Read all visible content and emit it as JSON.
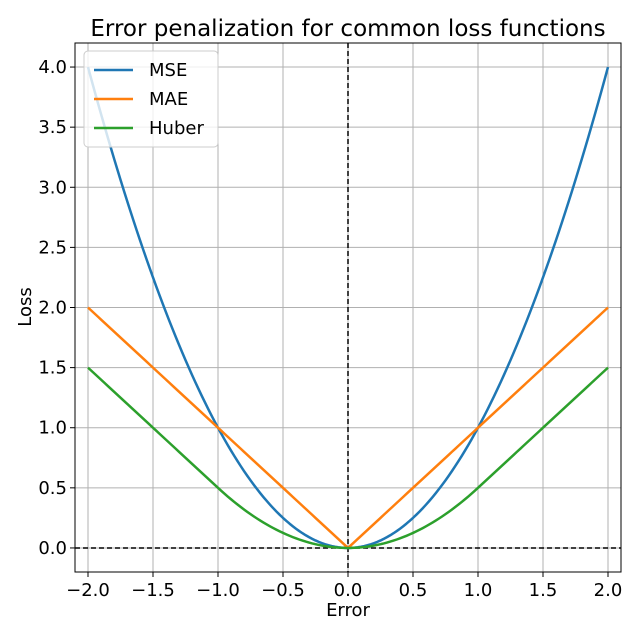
{
  "chart_data": {
    "type": "line",
    "title": "Error penalization for common loss functions",
    "xlabel": "Error",
    "ylabel": "Loss",
    "xlim": [
      -2.1,
      2.1
    ],
    "ylim": [
      -0.2,
      4.2
    ],
    "xticks": [
      -2.0,
      -1.5,
      -1.0,
      -0.5,
      0.0,
      0.5,
      1.0,
      1.5,
      2.0
    ],
    "xtick_labels": [
      "−2.0",
      "−1.5",
      "−1.0",
      "−0.5",
      "0.0",
      "0.5",
      "1.0",
      "1.5",
      "2.0"
    ],
    "yticks": [
      0.0,
      0.5,
      1.0,
      1.5,
      2.0,
      2.5,
      3.0,
      3.5,
      4.0
    ],
    "ytick_labels": [
      "0.0",
      "0.5",
      "1.0",
      "1.5",
      "2.0",
      "2.5",
      "3.0",
      "3.5",
      "4.0"
    ],
    "grid": true,
    "legend_position": "top-left",
    "reference_lines": {
      "vertical_x": 0.0,
      "horizontal_y": 0.0,
      "style": "dashed",
      "color": "#000000"
    },
    "x": [
      -2.0,
      -1.75,
      -1.5,
      -1.25,
      -1.0,
      -0.75,
      -0.5,
      -0.25,
      0.0,
      0.25,
      0.5,
      0.75,
      1.0,
      1.25,
      1.5,
      1.75,
      2.0
    ],
    "series": [
      {
        "name": "MSE",
        "color": "#1f77b4",
        "values": [
          4.0,
          3.0625,
          2.25,
          1.5625,
          1.0,
          0.5625,
          0.25,
          0.0625,
          0.0,
          0.0625,
          0.25,
          0.5625,
          1.0,
          1.5625,
          2.25,
          3.0625,
          4.0
        ]
      },
      {
        "name": "MAE",
        "color": "#ff7f0e",
        "values": [
          2.0,
          1.75,
          1.5,
          1.25,
          1.0,
          0.75,
          0.5,
          0.25,
          0.0,
          0.25,
          0.5,
          0.75,
          1.0,
          1.25,
          1.5,
          1.75,
          2.0
        ]
      },
      {
        "name": "Huber",
        "color": "#2ca02c",
        "values": [
          1.5,
          1.25,
          1.0,
          0.75,
          0.5,
          0.28125,
          0.125,
          0.03125,
          0.0,
          0.03125,
          0.125,
          0.28125,
          0.5,
          0.75,
          1.0,
          1.25,
          1.5
        ]
      }
    ]
  }
}
